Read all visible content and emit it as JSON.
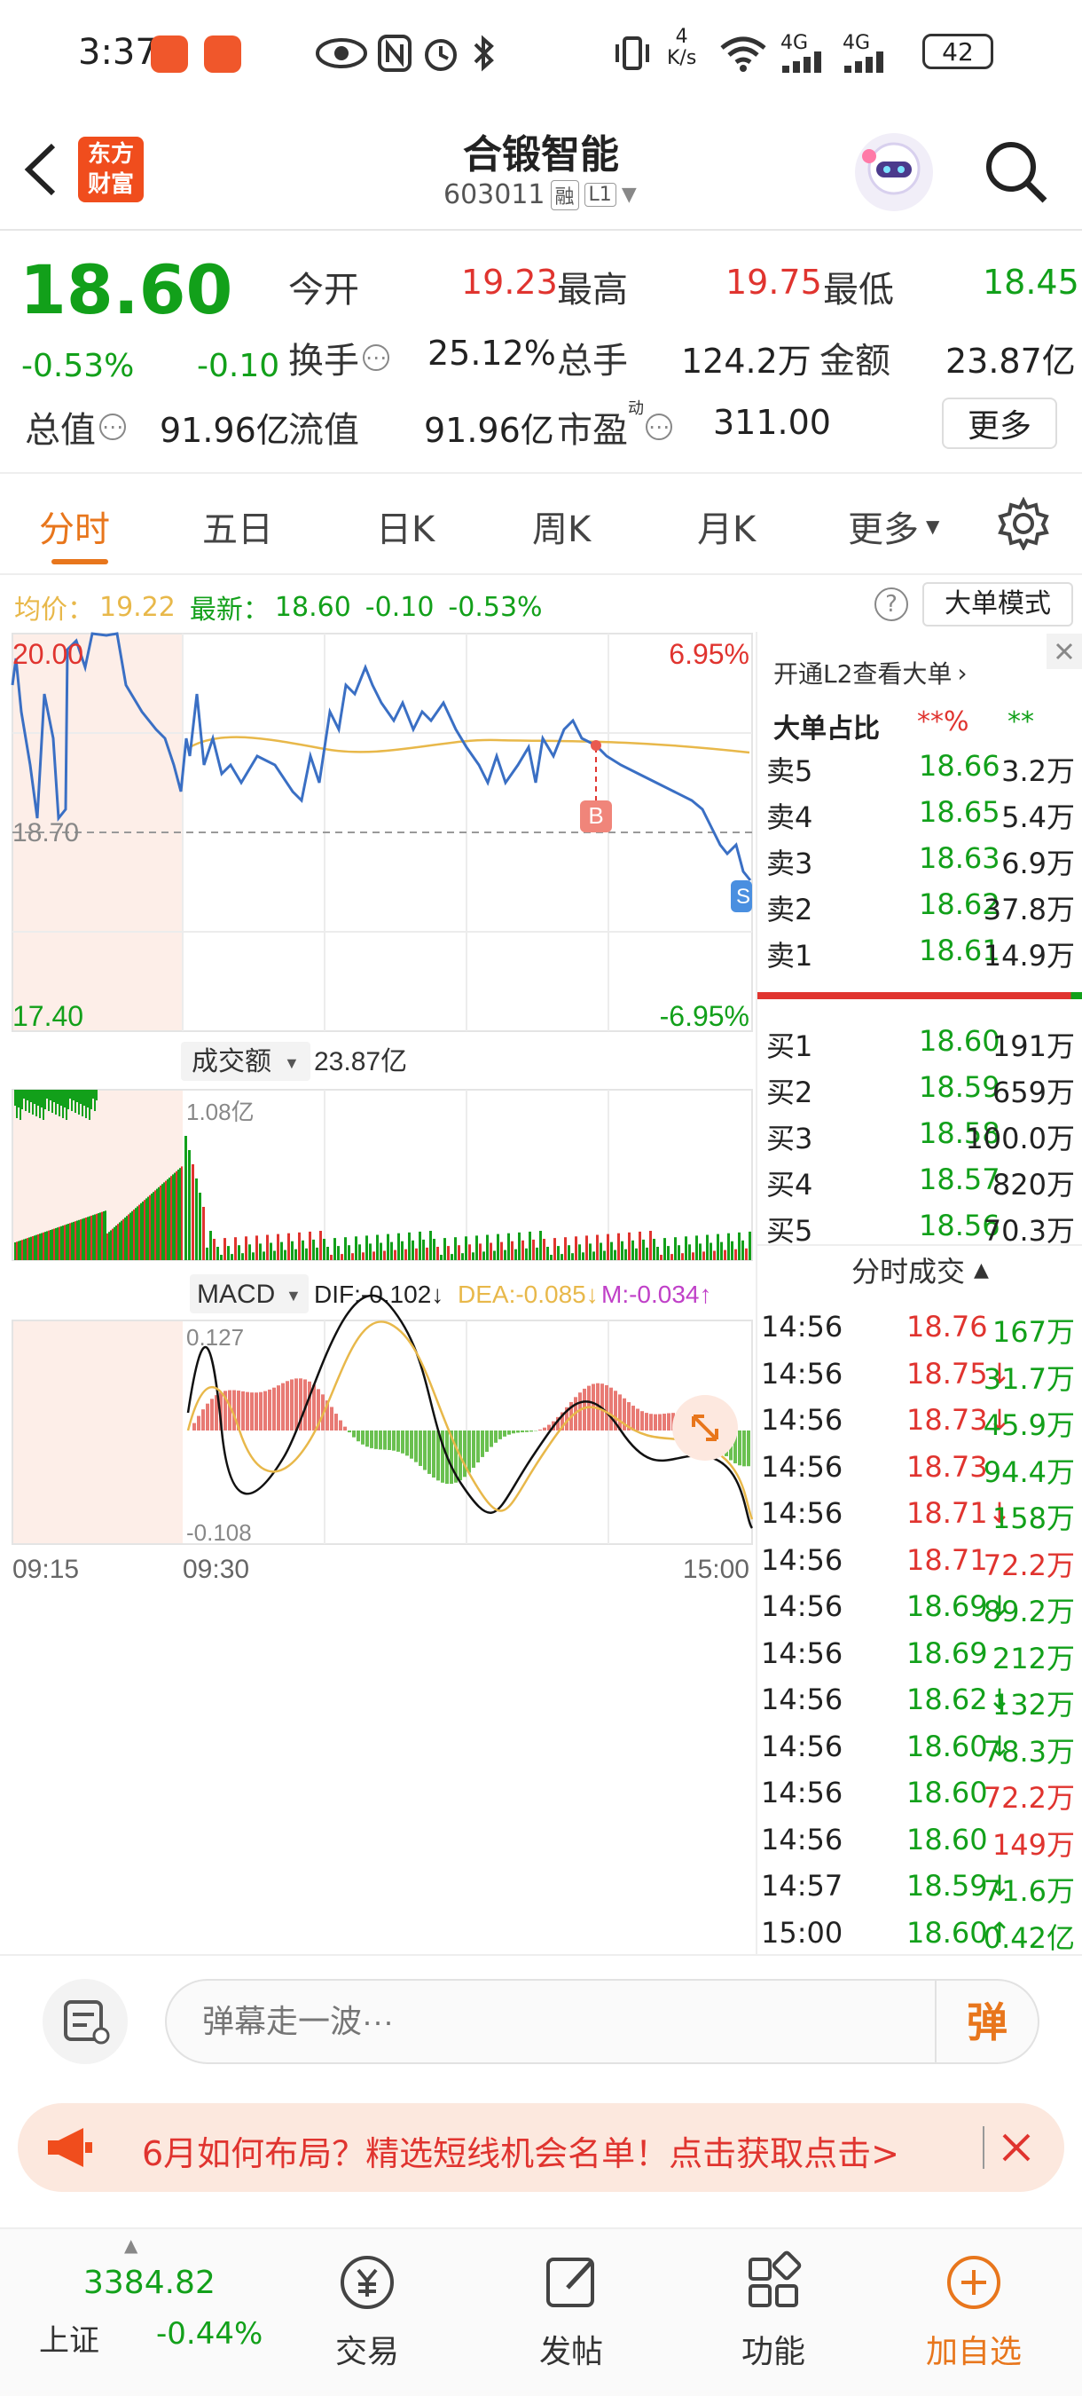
{
  "status_bar": {
    "time": "3:37",
    "net_speed_top": "4",
    "net_speed_unit": "K/s",
    "sig1": "4G",
    "sig2": "4G",
    "battery": "42"
  },
  "header": {
    "logo_line1": "东方",
    "logo_line2": "财富",
    "stock_name": "合锻智能",
    "stock_code": "603011",
    "tag_margin": "融",
    "tag_level": "L1"
  },
  "quote": {
    "price": "18.60",
    "change_pct": "-0.53%",
    "change": "-0.10",
    "open_label": "今开",
    "open": "19.23",
    "high_label": "最高",
    "high": "19.75",
    "low_label": "最低",
    "low": "18.45",
    "turnover_label": "换手",
    "turnover": "25.12%",
    "volume_label": "总手",
    "volume": "124.2万",
    "amount_label": "金额",
    "amount": "23.87亿",
    "mktcap_label": "总值",
    "mktcap": "91.96亿",
    "float_label": "流值",
    "float": "91.96亿",
    "pe_label": "市盈",
    "pe_sup": "动",
    "pe": "311.00",
    "more": "更多"
  },
  "tabs": [
    "分时",
    "五日",
    "日K",
    "周K",
    "月K",
    "更多"
  ],
  "info_line": {
    "avg_label": "均价：",
    "avg": "19.22",
    "latest_label": "最新：",
    "latest": "18.60",
    "chg": "-0.10",
    "pct": "-0.53%",
    "mode_btn": "大单模式"
  },
  "chart": {
    "y_top": "20.00",
    "y_top_pct": "6.95%",
    "y_mid": "18.70",
    "y_bottom": "17.40",
    "y_bottom_pct": "-6.95%",
    "marker_b": "B",
    "marker_s": "S",
    "vol_label": "成交额",
    "vol_value": "23.87亿",
    "vol_top": "1.08亿",
    "macd_label": "MACD",
    "dif": "DIF:-0.102↓",
    "dea": "DEA:-0.085↓",
    "m": "M:-0.034↑",
    "macd_top": "0.127",
    "macd_bottom": "-0.108",
    "time_start": "09:15",
    "time_open": "09:30",
    "time_end": "15:00",
    "colors": {
      "price_line": "#3a6fc4",
      "avg_line": "#e8b84a",
      "up": "#e0342f",
      "down": "#12a01a",
      "dea": "#e8b84a",
      "dif": "#111111",
      "premarket_bg": "#fdeee8"
    }
  },
  "orderbook": {
    "l2_link": "开通L2查看大单",
    "big_ratio_label": "大单占比",
    "big_ratio_red": "**%",
    "big_ratio_green": "**",
    "asks": [
      {
        "label": "卖5",
        "price": "18.66",
        "vol": "3.2万"
      },
      {
        "label": "卖4",
        "price": "18.65",
        "vol": "5.4万"
      },
      {
        "label": "卖3",
        "price": "18.63",
        "vol": "6.9万"
      },
      {
        "label": "卖2",
        "price": "18.62",
        "vol": "37.8万"
      },
      {
        "label": "卖1",
        "price": "18.61",
        "vol": "14.9万"
      }
    ],
    "bids": [
      {
        "label": "买1",
        "price": "18.60",
        "vol": "191万"
      },
      {
        "label": "买2",
        "price": "18.59",
        "vol": "659万"
      },
      {
        "label": "买3",
        "price": "18.58",
        "vol": "100.0万"
      },
      {
        "label": "买4",
        "price": "18.57",
        "vol": "820万"
      },
      {
        "label": "买5",
        "price": "18.56",
        "vol": "70.3万"
      }
    ],
    "trades_title": "分时成交",
    "trades": [
      {
        "time": "14:56",
        "price": "18.76",
        "vol": "167万",
        "pc": "red",
        "vc": "green"
      },
      {
        "time": "14:56",
        "price": "18.75↓",
        "vol": "31.7万",
        "pc": "red",
        "vc": "green"
      },
      {
        "time": "14:56",
        "price": "18.73↓",
        "vol": "45.9万",
        "pc": "red",
        "vc": "green"
      },
      {
        "time": "14:56",
        "price": "18.73",
        "vol": "94.4万",
        "pc": "red",
        "vc": "green"
      },
      {
        "time": "14:56",
        "price": "18.71↓",
        "vol": "158万",
        "pc": "red",
        "vc": "green"
      },
      {
        "time": "14:56",
        "price": "18.71",
        "vol": "72.2万",
        "pc": "red",
        "vc": "red"
      },
      {
        "time": "14:56",
        "price": "18.69↓",
        "vol": "89.2万",
        "pc": "green",
        "vc": "green"
      },
      {
        "time": "14:56",
        "price": "18.69",
        "vol": "212万",
        "pc": "green",
        "vc": "green"
      },
      {
        "time": "14:56",
        "price": "18.62↓",
        "vol": "132万",
        "pc": "green",
        "vc": "green"
      },
      {
        "time": "14:56",
        "price": "18.60↓",
        "vol": "78.3万",
        "pc": "green",
        "vc": "green"
      },
      {
        "time": "14:56",
        "price": "18.60",
        "vol": "72.2万",
        "pc": "green",
        "vc": "red"
      },
      {
        "time": "14:56",
        "price": "18.60",
        "vol": "149万",
        "pc": "green",
        "vc": "red"
      },
      {
        "time": "14:57",
        "price": "18.59↓",
        "vol": "71.6万",
        "pc": "green",
        "vc": "green"
      },
      {
        "time": "15:00",
        "price": "18.60↑",
        "vol": "0.42亿",
        "pc": "green",
        "vc": "green"
      }
    ]
  },
  "comment": {
    "placeholder": "弹幕走一波···",
    "danmu_btn": "弹"
  },
  "promo": {
    "text": "6月如何布局？精选短线机会名单！点击获取点击>"
  },
  "bottom_nav": {
    "index_value": "3384.82",
    "index_name": "上证",
    "index_pct": "-0.44%",
    "trade": "交易",
    "post": "发帖",
    "func": "功能",
    "add_fav": "加自选"
  }
}
